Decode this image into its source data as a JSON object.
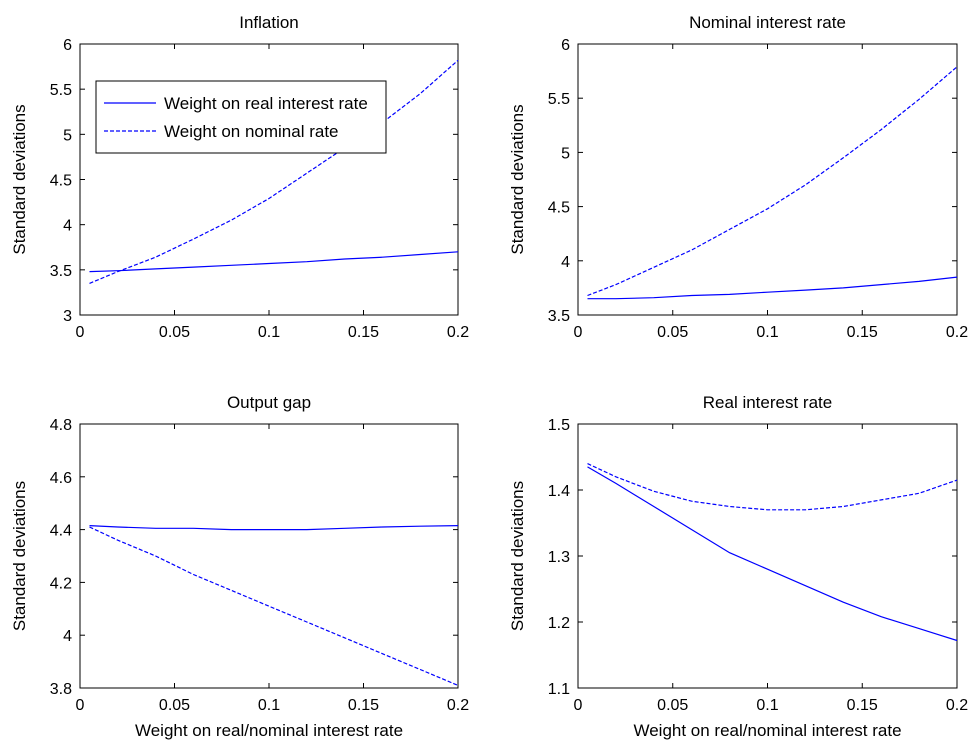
{
  "chart_data": [
    {
      "type": "line",
      "title": "Inflation",
      "xlabel": "",
      "ylabel": "Standard deviations",
      "xlim": [
        0,
        0.2
      ],
      "ylim": [
        3,
        6
      ],
      "xticks": [
        0,
        0.05,
        0.1,
        0.15,
        0.2
      ],
      "xtick_labels": [
        "0",
        "0.05",
        "0.1",
        "0.15",
        "0.2"
      ],
      "yticks": [
        3,
        3.5,
        4,
        4.5,
        5,
        5.5,
        6
      ],
      "ytick_labels": [
        "3",
        "3.5",
        "4",
        "4.5",
        "5",
        "5.5",
        "6"
      ],
      "grid": false,
      "legend": {
        "placement": "top-left",
        "entries": [
          "Weight on real interest rate",
          "Weight on nominal rate"
        ]
      },
      "x": [
        0.005,
        0.02,
        0.04,
        0.06,
        0.08,
        0.1,
        0.12,
        0.14,
        0.16,
        0.18,
        0.2
      ],
      "series": [
        {
          "name": "Weight on real interest rate",
          "style": "solid",
          "values": [
            3.48,
            3.49,
            3.51,
            3.53,
            3.55,
            3.57,
            3.59,
            3.62,
            3.64,
            3.67,
            3.7
          ]
        },
        {
          "name": "Weight on nominal rate",
          "style": "dashed",
          "values": [
            3.35,
            3.48,
            3.64,
            3.84,
            4.05,
            4.29,
            4.57,
            4.85,
            5.13,
            5.45,
            5.82
          ]
        }
      ]
    },
    {
      "type": "line",
      "title": "Nominal interest rate",
      "xlabel": "",
      "ylabel": "Standard deviations",
      "xlim": [
        0,
        0.2
      ],
      "ylim": [
        3.5,
        6
      ],
      "xticks": [
        0,
        0.05,
        0.1,
        0.15,
        0.2
      ],
      "xtick_labels": [
        "0",
        "0.05",
        "0.1",
        "0.15",
        "0.2"
      ],
      "yticks": [
        3.5,
        4,
        4.5,
        5,
        5.5,
        6
      ],
      "ytick_labels": [
        "3.5",
        "4",
        "4.5",
        "5",
        "5.5",
        "6"
      ],
      "grid": false,
      "x": [
        0.005,
        0.02,
        0.04,
        0.06,
        0.08,
        0.1,
        0.12,
        0.14,
        0.16,
        0.18,
        0.2
      ],
      "series": [
        {
          "style": "solid",
          "values": [
            3.65,
            3.65,
            3.66,
            3.68,
            3.69,
            3.71,
            3.73,
            3.75,
            3.78,
            3.81,
            3.85
          ]
        },
        {
          "style": "dashed",
          "values": [
            3.68,
            3.78,
            3.94,
            4.1,
            4.29,
            4.48,
            4.7,
            4.95,
            5.21,
            5.49,
            5.79
          ]
        }
      ]
    },
    {
      "type": "line",
      "title": "Output gap",
      "xlabel": "Weight on real/nominal interest rate",
      "ylabel": "Standard deviations",
      "xlim": [
        0,
        0.2
      ],
      "ylim": [
        3.8,
        4.8
      ],
      "xticks": [
        0,
        0.05,
        0.1,
        0.15,
        0.2
      ],
      "xtick_labels": [
        "0",
        "0.05",
        "0.1",
        "0.15",
        "0.2"
      ],
      "yticks": [
        3.8,
        4,
        4.2,
        4.4,
        4.6,
        4.8
      ],
      "ytick_labels": [
        "3.8",
        "4",
        "4.2",
        "4.4",
        "4.6",
        "4.8"
      ],
      "grid": false,
      "x": [
        0.005,
        0.02,
        0.04,
        0.06,
        0.08,
        0.1,
        0.12,
        0.14,
        0.16,
        0.18,
        0.2
      ],
      "series": [
        {
          "style": "solid",
          "values": [
            4.415,
            4.41,
            4.405,
            4.405,
            4.4,
            4.4,
            4.4,
            4.405,
            4.41,
            4.413,
            4.415
          ]
        },
        {
          "style": "dashed",
          "values": [
            4.41,
            4.36,
            4.3,
            4.23,
            4.17,
            4.11,
            4.05,
            3.99,
            3.93,
            3.87,
            3.81
          ]
        }
      ]
    },
    {
      "type": "line",
      "title": "Real interest rate",
      "xlabel": "Weight on real/nominal interest rate",
      "ylabel": "Standard deviations",
      "xlim": [
        0,
        0.2
      ],
      "ylim": [
        1.1,
        1.5
      ],
      "xticks": [
        0,
        0.05,
        0.1,
        0.15,
        0.2
      ],
      "xtick_labels": [
        "0",
        "0.05",
        "0.1",
        "0.15",
        "0.2"
      ],
      "yticks": [
        1.1,
        1.2,
        1.3,
        1.4,
        1.5
      ],
      "ytick_labels": [
        "1.1",
        "1.2",
        "1.3",
        "1.4",
        "1.5"
      ],
      "grid": false,
      "x": [
        0.005,
        0.02,
        0.04,
        0.06,
        0.08,
        0.1,
        0.12,
        0.14,
        0.16,
        0.18,
        0.2
      ],
      "series": [
        {
          "style": "solid",
          "values": [
            1.435,
            1.41,
            1.375,
            1.34,
            1.305,
            1.28,
            1.255,
            1.23,
            1.208,
            1.19,
            1.172
          ]
        },
        {
          "style": "dashed",
          "values": [
            1.44,
            1.42,
            1.398,
            1.383,
            1.375,
            1.37,
            1.37,
            1.375,
            1.385,
            1.395,
            1.415
          ]
        }
      ]
    }
  ],
  "colors": {
    "series": "#0000ff",
    "axes": "#000000",
    "background": "#ffffff"
  }
}
